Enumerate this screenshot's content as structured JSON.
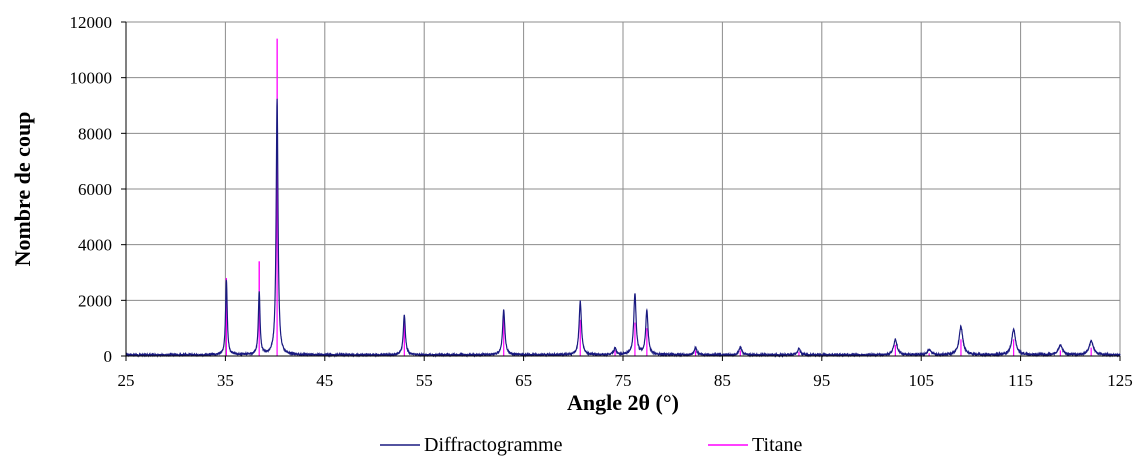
{
  "chart_data": {
    "type": "line",
    "title": "",
    "xlabel": "Angle 2θ (°)",
    "ylabel": "Nombre de coup",
    "xlim": [
      25,
      125
    ],
    "ylim": [
      0,
      12000
    ],
    "x_ticks": [
      "25",
      "35",
      "45",
      "55",
      "65",
      "75",
      "85",
      "95",
      "105",
      "115",
      "125"
    ],
    "y_ticks": [
      "0",
      "2000",
      "4000",
      "6000",
      "8000",
      "10000",
      "12000"
    ],
    "grid": true,
    "legend_position": "bottom",
    "background_noise": 40,
    "series": [
      {
        "name": "Diffractogramme",
        "color": "#1a1a80",
        "style": "profile",
        "peaks": [
          {
            "x": 35.1,
            "y": 2700,
            "w": 0.2
          },
          {
            "x": 38.4,
            "y": 2280,
            "w": 0.2
          },
          {
            "x": 40.2,
            "y": 9200,
            "w": 0.22
          },
          {
            "x": 53.0,
            "y": 1420,
            "w": 0.25
          },
          {
            "x": 63.0,
            "y": 1620,
            "w": 0.27
          },
          {
            "x": 70.7,
            "y": 1920,
            "w": 0.28
          },
          {
            "x": 74.2,
            "y": 230,
            "w": 0.3
          },
          {
            "x": 76.2,
            "y": 2180,
            "w": 0.28
          },
          {
            "x": 77.4,
            "y": 1580,
            "w": 0.28
          },
          {
            "x": 82.3,
            "y": 270,
            "w": 0.3
          },
          {
            "x": 86.8,
            "y": 280,
            "w": 0.32
          },
          {
            "x": 92.7,
            "y": 220,
            "w": 0.35
          },
          {
            "x": 102.4,
            "y": 560,
            "w": 0.4
          },
          {
            "x": 105.8,
            "y": 180,
            "w": 0.45
          },
          {
            "x": 109.0,
            "y": 1000,
            "w": 0.45
          },
          {
            "x": 114.3,
            "y": 920,
            "w": 0.45
          },
          {
            "x": 119.0,
            "y": 340,
            "w": 0.5
          },
          {
            "x": 122.1,
            "y": 490,
            "w": 0.5
          }
        ]
      },
      {
        "name": "Titane",
        "color": "#ff00ff",
        "style": "sticks",
        "peaks": [
          {
            "x": 35.1,
            "y": 2800
          },
          {
            "x": 38.4,
            "y": 3400
          },
          {
            "x": 40.2,
            "y": 11400
          },
          {
            "x": 53.0,
            "y": 1300
          },
          {
            "x": 63.0,
            "y": 1400
          },
          {
            "x": 70.7,
            "y": 1300
          },
          {
            "x": 74.2,
            "y": 200
          },
          {
            "x": 76.2,
            "y": 1200
          },
          {
            "x": 77.4,
            "y": 1000
          },
          {
            "x": 82.3,
            "y": 200
          },
          {
            "x": 86.8,
            "y": 200
          },
          {
            "x": 92.7,
            "y": 150
          },
          {
            "x": 102.4,
            "y": 400
          },
          {
            "x": 105.8,
            "y": 100
          },
          {
            "x": 109.0,
            "y": 600
          },
          {
            "x": 114.3,
            "y": 600
          },
          {
            "x": 119.0,
            "y": 200
          },
          {
            "x": 122.1,
            "y": 300
          }
        ]
      }
    ]
  }
}
